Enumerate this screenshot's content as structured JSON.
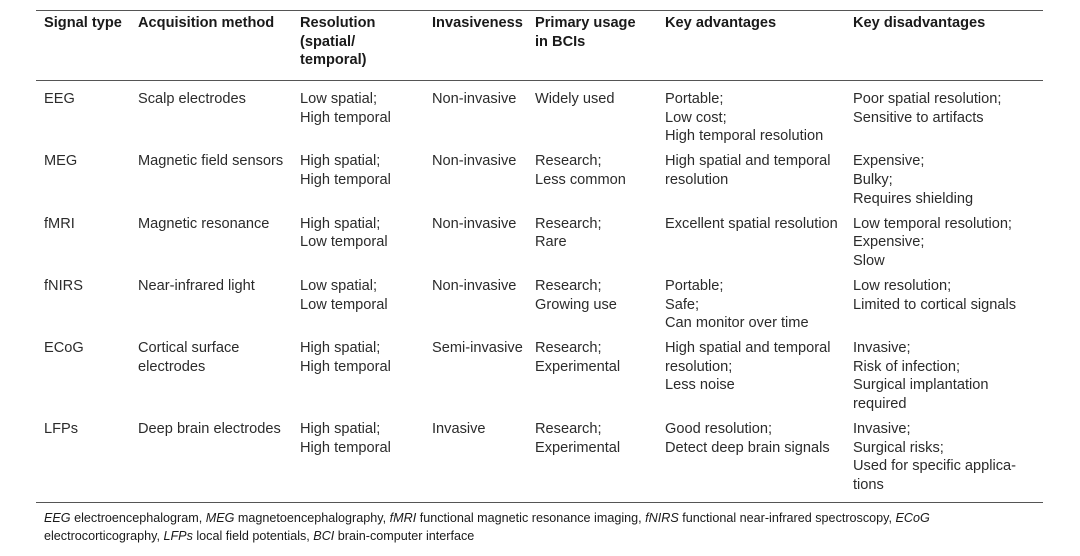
{
  "table": {
    "headers": [
      [
        "Signal type"
      ],
      [
        "Acquisition method"
      ],
      [
        "Resolution",
        "(spatial/",
        "temporal)"
      ],
      [
        "Invasiveness"
      ],
      [
        "Primary usage",
        "in BCIs"
      ],
      [
        "Key advantages"
      ],
      [
        "Key disadvantages"
      ]
    ],
    "rows": [
      [
        [
          "EEG"
        ],
        [
          "Scalp electrodes"
        ],
        [
          "Low spatial;",
          "High temporal"
        ],
        [
          "Non-invasive"
        ],
        [
          "Widely used"
        ],
        [
          "Portable;",
          "Low cost;",
          "High temporal resolution"
        ],
        [
          "Poor spatial resolution;",
          "Sensitive to artifacts"
        ]
      ],
      [
        [
          "MEG"
        ],
        [
          "Magnetic field sensors"
        ],
        [
          "High spatial;",
          "High temporal"
        ],
        [
          "Non-invasive"
        ],
        [
          "Research;",
          "Less common"
        ],
        [
          "High spatial and temporal",
          "resolution"
        ],
        [
          "Expensive;",
          "Bulky;",
          "Requires shielding"
        ]
      ],
      [
        [
          "fMRI"
        ],
        [
          "Magnetic resonance"
        ],
        [
          "High spatial;",
          "Low temporal"
        ],
        [
          "Non-invasive"
        ],
        [
          "Research;",
          "Rare"
        ],
        [
          "Excellent spatial resolution"
        ],
        [
          "Low temporal resolution;",
          "Expensive;",
          "Slow"
        ]
      ],
      [
        [
          "fNIRS"
        ],
        [
          "Near-infrared light"
        ],
        [
          "Low spatial;",
          "Low temporal"
        ],
        [
          "Non-invasive"
        ],
        [
          "Research;",
          "Growing use"
        ],
        [
          "Portable;",
          "Safe;",
          "Can monitor over time"
        ],
        [
          "Low resolution;",
          "Limited to cortical signals"
        ]
      ],
      [
        [
          "ECoG"
        ],
        [
          "Cortical surface",
          "electrodes"
        ],
        [
          "High spatial;",
          "High temporal"
        ],
        [
          "Semi-invasive"
        ],
        [
          "Research;",
          "Experimental"
        ],
        [
          "High spatial and temporal",
          "resolution;",
          "Less noise"
        ],
        [
          "Invasive;",
          "Risk of infection;",
          "Surgical implantation",
          "required"
        ]
      ],
      [
        [
          "LFPs"
        ],
        [
          "Deep brain electrodes"
        ],
        [
          "High spatial;",
          "High temporal"
        ],
        [
          "Invasive"
        ],
        [
          "Research;",
          "Experimental"
        ],
        [
          "Good resolution;",
          "Detect deep brain signals"
        ],
        [
          "Invasive;",
          "Surgical risks;",
          "Used for specific applica-",
          "tions"
        ]
      ]
    ]
  },
  "footnote": [
    {
      "abbr": "EEG",
      "def": "electroencephalogram,"
    },
    {
      "abbr": "MEG",
      "def": "magnetoencephalography,"
    },
    {
      "abbr": "fMRI",
      "def": "functional magnetic resonance imaging,"
    },
    {
      "abbr": "fNIRS",
      "def": "functional near-infrared spectroscopy,"
    },
    {
      "abbr": "ECoG",
      "def": "electrocorticography,"
    },
    {
      "abbr": "LFPs",
      "def": "local field potentials,"
    },
    {
      "abbr": "BCI",
      "def": "brain-computer interface"
    }
  ]
}
